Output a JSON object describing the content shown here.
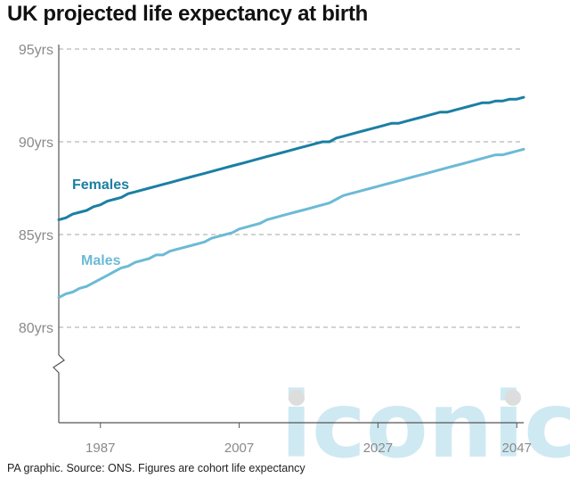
{
  "title": "UK projected life expectancy at birth",
  "source": "PA graphic. Source: ONS. Figures are cohort life expectancy",
  "watermark": "iconic",
  "colors": {
    "females": "#1b7fa3",
    "males": "#6cbad6",
    "grid": "#a6a6a6",
    "axis": "#555555",
    "watermark": "#cfe9f2",
    "watermark_dot": "#dddddd"
  },
  "chart_data": {
    "type": "line",
    "x": [
      1981,
      1982,
      1983,
      1984,
      1985,
      1986,
      1987,
      1988,
      1989,
      1990,
      1991,
      1992,
      1993,
      1994,
      1995,
      1996,
      1997,
      1998,
      1999,
      2000,
      2001,
      2002,
      2003,
      2004,
      2005,
      2006,
      2007,
      2008,
      2009,
      2010,
      2011,
      2012,
      2013,
      2014,
      2015,
      2016,
      2017,
      2018,
      2019,
      2020,
      2021,
      2022,
      2023,
      2024,
      2025,
      2026,
      2027,
      2028,
      2029,
      2030,
      2031,
      2032,
      2033,
      2034,
      2035,
      2036,
      2037,
      2038,
      2039,
      2040,
      2041,
      2042,
      2043,
      2044,
      2045,
      2046,
      2047,
      2048
    ],
    "series": [
      {
        "name": "Females",
        "values": [
          85.8,
          85.9,
          86.1,
          86.2,
          86.3,
          86.5,
          86.6,
          86.8,
          86.9,
          87.0,
          87.2,
          87.3,
          87.4,
          87.5,
          87.6,
          87.7,
          87.8,
          87.9,
          88.0,
          88.1,
          88.2,
          88.3,
          88.4,
          88.5,
          88.6,
          88.7,
          88.8,
          88.9,
          89.0,
          89.1,
          89.2,
          89.3,
          89.4,
          89.5,
          89.6,
          89.7,
          89.8,
          89.9,
          90.0,
          90.0,
          90.2,
          90.3,
          90.4,
          90.5,
          90.6,
          90.7,
          90.8,
          90.9,
          91.0,
          91.0,
          91.1,
          91.2,
          91.3,
          91.4,
          91.5,
          91.6,
          91.6,
          91.7,
          91.8,
          91.9,
          92.0,
          92.1,
          92.1,
          92.2,
          92.2,
          92.3,
          92.3,
          92.4
        ]
      },
      {
        "name": "Males",
        "values": [
          81.6,
          81.8,
          81.9,
          82.1,
          82.2,
          82.4,
          82.6,
          82.8,
          83.0,
          83.2,
          83.3,
          83.5,
          83.6,
          83.7,
          83.9,
          83.9,
          84.1,
          84.2,
          84.3,
          84.4,
          84.5,
          84.6,
          84.8,
          84.9,
          85.0,
          85.1,
          85.3,
          85.4,
          85.5,
          85.6,
          85.8,
          85.9,
          86.0,
          86.1,
          86.2,
          86.3,
          86.4,
          86.5,
          86.6,
          86.7,
          86.9,
          87.1,
          87.2,
          87.3,
          87.4,
          87.5,
          87.6,
          87.7,
          87.8,
          87.9,
          88.0,
          88.1,
          88.2,
          88.3,
          88.4,
          88.5,
          88.6,
          88.7,
          88.8,
          88.9,
          89.0,
          89.1,
          89.2,
          89.3,
          89.3,
          89.4,
          89.5,
          89.6
        ]
      }
    ],
    "yticks": [
      {
        "value": 80,
        "label": "80yrs"
      },
      {
        "value": 85,
        "label": "85yrs"
      },
      {
        "value": 90,
        "label": "90yrs"
      },
      {
        "value": 95,
        "label": "95yrs"
      }
    ],
    "xticks": [
      {
        "value": 1987,
        "label": "1987"
      },
      {
        "value": 2007,
        "label": "2007"
      },
      {
        "value": 2027,
        "label": "2027"
      },
      {
        "value": 2047,
        "label": "2047"
      }
    ],
    "xlim": [
      1981,
      2048
    ],
    "ylim": [
      75,
      95
    ],
    "axis_break": true,
    "grid": "horizontal dashed",
    "legend": "inline labels"
  }
}
